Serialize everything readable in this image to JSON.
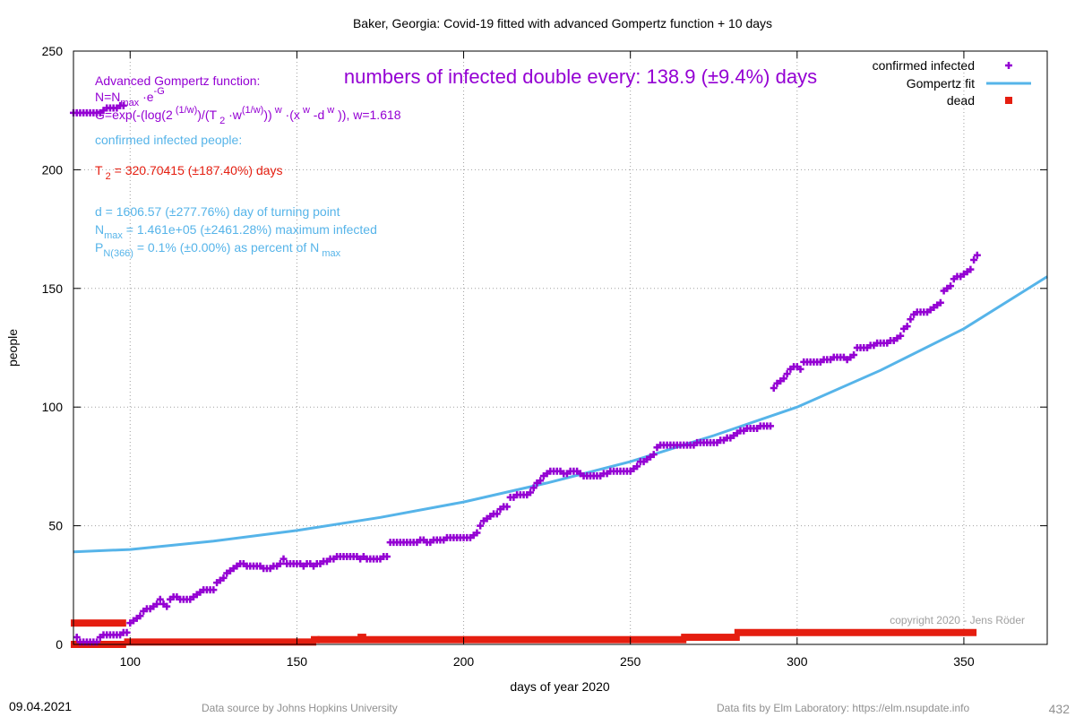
{
  "chart_data": {
    "type": "scatter",
    "title": "Baker,  Georgia: Covid-19 fitted with advanced Gompertz function + 10 days",
    "xlabel": "days of year 2020",
    "ylabel": "people",
    "xlim": [
      83,
      375
    ],
    "ylim": [
      0,
      250
    ],
    "x_ticks": [
      100,
      150,
      200,
      250,
      300,
      350
    ],
    "y_ticks": [
      0,
      50,
      100,
      150,
      200,
      250
    ],
    "grid": true,
    "legend_position": "top-right",
    "legend": [
      {
        "label": "confirmed infected",
        "color": "#9400d3",
        "marker": "plus"
      },
      {
        "label": "Gompertz fit",
        "color": "#56b4e9",
        "marker": "line"
      },
      {
        "label": "dead",
        "color": "#e51e10",
        "marker": "square"
      }
    ],
    "series": [
      {
        "name": "confirmed infected",
        "color": "#9400d3",
        "points": [
          [
            83,
            224
          ],
          [
            84,
            224
          ],
          [
            85,
            224
          ],
          [
            86,
            224
          ],
          [
            87,
            224
          ],
          [
            88,
            224
          ],
          [
            89,
            224
          ],
          [
            90,
            224
          ],
          [
            91,
            224
          ],
          [
            92,
            225
          ],
          [
            93,
            226
          ],
          [
            94,
            226
          ],
          [
            95,
            226
          ],
          [
            96,
            226
          ],
          [
            97,
            227
          ],
          [
            98,
            227
          ],
          [
            84,
            3
          ],
          [
            85,
            1
          ],
          [
            86,
            1
          ],
          [
            87,
            1
          ],
          [
            88,
            1
          ],
          [
            89,
            1
          ],
          [
            90,
            1
          ],
          [
            91,
            3
          ],
          [
            92,
            4
          ],
          [
            93,
            4
          ],
          [
            94,
            4
          ],
          [
            95,
            4
          ],
          [
            96,
            4
          ],
          [
            97,
            4
          ],
          [
            98,
            5
          ],
          [
            99,
            5
          ],
          [
            100,
            9
          ],
          [
            101,
            10
          ],
          [
            102,
            11
          ],
          [
            103,
            12
          ],
          [
            104,
            14
          ],
          [
            105,
            15
          ],
          [
            106,
            15
          ],
          [
            107,
            16
          ],
          [
            108,
            17
          ],
          [
            109,
            19
          ],
          [
            110,
            17
          ],
          [
            111,
            16
          ],
          [
            112,
            19
          ],
          [
            113,
            20
          ],
          [
            114,
            20
          ],
          [
            115,
            19
          ],
          [
            116,
            19
          ],
          [
            117,
            19
          ],
          [
            118,
            19
          ],
          [
            119,
            20
          ],
          [
            120,
            21
          ],
          [
            121,
            22
          ],
          [
            122,
            23
          ],
          [
            123,
            23
          ],
          [
            124,
            23
          ],
          [
            125,
            23
          ],
          [
            126,
            26
          ],
          [
            127,
            27
          ],
          [
            128,
            28
          ],
          [
            129,
            30
          ],
          [
            130,
            31
          ],
          [
            131,
            32
          ],
          [
            132,
            33
          ],
          [
            133,
            34
          ],
          [
            134,
            34
          ],
          [
            135,
            33
          ],
          [
            136,
            33
          ],
          [
            137,
            33
          ],
          [
            138,
            33
          ],
          [
            139,
            33
          ],
          [
            140,
            32
          ],
          [
            141,
            32
          ],
          [
            142,
            32
          ],
          [
            143,
            33
          ],
          [
            144,
            33
          ],
          [
            145,
            34
          ],
          [
            146,
            36
          ],
          [
            147,
            34
          ],
          [
            148,
            34
          ],
          [
            149,
            34
          ],
          [
            150,
            34
          ],
          [
            151,
            34
          ],
          [
            152,
            33
          ],
          [
            153,
            34
          ],
          [
            154,
            34
          ],
          [
            155,
            33
          ],
          [
            156,
            34
          ],
          [
            157,
            34
          ],
          [
            158,
            35
          ],
          [
            159,
            35
          ],
          [
            160,
            36
          ],
          [
            161,
            36
          ],
          [
            162,
            37
          ],
          [
            163,
            37
          ],
          [
            164,
            37
          ],
          [
            165,
            37
          ],
          [
            166,
            37
          ],
          [
            167,
            37
          ],
          [
            168,
            37
          ],
          [
            169,
            36
          ],
          [
            170,
            37
          ],
          [
            171,
            36
          ],
          [
            172,
            36
          ],
          [
            173,
            36
          ],
          [
            174,
            36
          ],
          [
            175,
            36
          ],
          [
            176,
            37
          ],
          [
            177,
            37
          ],
          [
            178,
            43
          ],
          [
            179,
            43
          ],
          [
            180,
            43
          ],
          [
            181,
            43
          ],
          [
            182,
            43
          ],
          [
            183,
            43
          ],
          [
            184,
            43
          ],
          [
            185,
            43
          ],
          [
            186,
            43
          ],
          [
            187,
            44
          ],
          [
            188,
            44
          ],
          [
            189,
            43
          ],
          [
            190,
            43
          ],
          [
            191,
            44
          ],
          [
            192,
            44
          ],
          [
            193,
            44
          ],
          [
            194,
            44
          ],
          [
            195,
            45
          ],
          [
            196,
            45
          ],
          [
            197,
            45
          ],
          [
            198,
            45
          ],
          [
            199,
            45
          ],
          [
            200,
            45
          ],
          [
            201,
            45
          ],
          [
            202,
            45
          ],
          [
            203,
            46
          ],
          [
            204,
            47
          ],
          [
            205,
            50
          ],
          [
            206,
            52
          ],
          [
            207,
            53
          ],
          [
            208,
            54
          ],
          [
            209,
            55
          ],
          [
            210,
            55
          ],
          [
            211,
            57
          ],
          [
            212,
            58
          ],
          [
            213,
            58
          ],
          [
            214,
            62
          ],
          [
            215,
            62
          ],
          [
            216,
            63
          ],
          [
            217,
            63
          ],
          [
            218,
            63
          ],
          [
            219,
            63
          ],
          [
            220,
            64
          ],
          [
            221,
            66
          ],
          [
            222,
            68
          ],
          [
            223,
            69
          ],
          [
            224,
            71
          ],
          [
            225,
            72
          ],
          [
            226,
            73
          ],
          [
            227,
            73
          ],
          [
            228,
            73
          ],
          [
            229,
            73
          ],
          [
            230,
            72
          ],
          [
            231,
            72
          ],
          [
            232,
            73
          ],
          [
            233,
            73
          ],
          [
            234,
            73
          ],
          [
            235,
            72
          ],
          [
            236,
            71
          ],
          [
            237,
            71
          ],
          [
            238,
            71
          ],
          [
            239,
            71
          ],
          [
            240,
            71
          ],
          [
            241,
            71
          ],
          [
            242,
            72
          ],
          [
            243,
            72
          ],
          [
            244,
            73
          ],
          [
            245,
            73
          ],
          [
            246,
            73
          ],
          [
            247,
            73
          ],
          [
            248,
            73
          ],
          [
            249,
            73
          ],
          [
            250,
            73
          ],
          [
            251,
            74
          ],
          [
            252,
            75
          ],
          [
            253,
            77
          ],
          [
            254,
            77
          ],
          [
            255,
            78
          ],
          [
            256,
            79
          ],
          [
            257,
            80
          ],
          [
            258,
            83
          ],
          [
            259,
            84
          ],
          [
            260,
            84
          ],
          [
            261,
            84
          ],
          [
            262,
            84
          ],
          [
            263,
            84
          ],
          [
            264,
            84
          ],
          [
            265,
            84
          ],
          [
            266,
            84
          ],
          [
            267,
            84
          ],
          [
            268,
            84
          ],
          [
            269,
            84
          ],
          [
            270,
            85
          ],
          [
            271,
            85
          ],
          [
            272,
            85
          ],
          [
            273,
            85
          ],
          [
            274,
            85
          ],
          [
            275,
            85
          ],
          [
            276,
            85
          ],
          [
            277,
            86
          ],
          [
            278,
            86
          ],
          [
            279,
            87
          ],
          [
            280,
            87
          ],
          [
            281,
            88
          ],
          [
            282,
            89
          ],
          [
            283,
            90
          ],
          [
            284,
            90
          ],
          [
            285,
            91
          ],
          [
            286,
            91
          ],
          [
            287,
            91
          ],
          [
            288,
            91
          ],
          [
            289,
            92
          ],
          [
            290,
            92
          ],
          [
            291,
            92
          ],
          [
            292,
            92
          ],
          [
            293,
            108
          ],
          [
            294,
            110
          ],
          [
            295,
            111
          ],
          [
            296,
            112
          ],
          [
            297,
            114
          ],
          [
            298,
            116
          ],
          [
            299,
            117
          ],
          [
            300,
            117
          ],
          [
            301,
            116
          ],
          [
            302,
            119
          ],
          [
            303,
            119
          ],
          [
            304,
            119
          ],
          [
            305,
            119
          ],
          [
            306,
            119
          ],
          [
            307,
            119
          ],
          [
            308,
            120
          ],
          [
            309,
            120
          ],
          [
            310,
            120
          ],
          [
            311,
            121
          ],
          [
            312,
            121
          ],
          [
            313,
            121
          ],
          [
            314,
            121
          ],
          [
            315,
            120
          ],
          [
            316,
            121
          ],
          [
            317,
            122
          ],
          [
            318,
            125
          ],
          [
            319,
            125
          ],
          [
            320,
            125
          ],
          [
            321,
            125
          ],
          [
            322,
            126
          ],
          [
            323,
            126
          ],
          [
            324,
            127
          ],
          [
            325,
            127
          ],
          [
            326,
            127
          ],
          [
            327,
            127
          ],
          [
            328,
            128
          ],
          [
            329,
            128
          ],
          [
            330,
            129
          ],
          [
            331,
            130
          ],
          [
            332,
            133
          ],
          [
            333,
            134
          ],
          [
            334,
            137
          ],
          [
            335,
            139
          ],
          [
            336,
            140
          ],
          [
            337,
            140
          ],
          [
            338,
            140
          ],
          [
            339,
            140
          ],
          [
            340,
            141
          ],
          [
            341,
            142
          ],
          [
            342,
            143
          ],
          [
            343,
            144
          ],
          [
            344,
            149
          ],
          [
            345,
            150
          ],
          [
            346,
            151
          ],
          [
            347,
            154
          ],
          [
            348,
            155
          ],
          [
            349,
            155
          ],
          [
            350,
            156
          ],
          [
            351,
            157
          ],
          [
            352,
            158
          ],
          [
            353,
            162
          ],
          [
            354,
            164
          ]
        ]
      },
      {
        "name": "Gompertz fit",
        "color": "#56b4e9",
        "points": [
          [
            83,
            39
          ],
          [
            100,
            40
          ],
          [
            125,
            43.5
          ],
          [
            150,
            48
          ],
          [
            175,
            53.5
          ],
          [
            200,
            60
          ],
          [
            225,
            68
          ],
          [
            250,
            77
          ],
          [
            275,
            88
          ],
          [
            300,
            100
          ],
          [
            325,
            115.5
          ],
          [
            350,
            133
          ],
          [
            375,
            155
          ]
        ]
      },
      {
        "name": "dead",
        "color": "#e51e10",
        "segments": [
          [
            83,
            98,
            9
          ],
          [
            83,
            98,
            0
          ],
          [
            99,
            155,
            1
          ],
          [
            155,
            156,
            2
          ],
          [
            157,
            266,
            2
          ],
          [
            169,
            170,
            3
          ],
          [
            266,
            282,
            3
          ],
          [
            282,
            353,
            5
          ]
        ]
      }
    ],
    "annotations": {
      "model_heading": "Advanced Gompertz function:",
      "formula_n": "N=N max ·e -G",
      "formula_g": "G=exp(-(log(2 (1/w) )/(T 2 ·w (1/w) )) w ·(x w -d w )), w=1.618",
      "doubling_text": "numbers of infected double every: 138.9 (±9.4%) days",
      "confirmed_label": "confirmed infected people:",
      "t2_text": "T 2 = 320.70415 (±187.40%) days",
      "d_text": "d = 1606.57 (±277.76%) day of turning point",
      "nmax_text": "N max = 1.461e+05 (±2461.28%) maximum infected",
      "p_text": "P N(366) = 0.1% (±0.00%) as percent of N max",
      "copyright": "copyright 2020 - Jens Röder"
    }
  },
  "footer": {
    "date": "09.04.2021",
    "source": "Data source by Johns Hopkins University",
    "fits": "Data fits by Elm Laboratory: https://elm.nsupdate.info",
    "page_number": "432"
  }
}
